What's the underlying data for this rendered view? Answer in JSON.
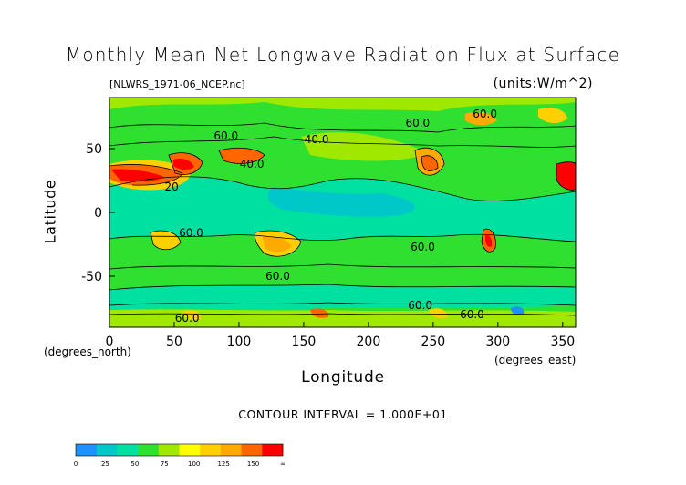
{
  "chart_data": {
    "type": "heatmap",
    "title": "Monthly Mean Net Longwave Radiation Flux at Surface",
    "source_label": "[NLWRS_1971-06_NCEP.nc]",
    "units_label": "(units:W/m^2)",
    "xlabel": "Longitude",
    "ylabel": "Latitude",
    "x_unit_label": "(degrees_east)",
    "y_unit_label": "(degrees_north)",
    "contour_interval_text": "CONTOUR INTERVAL = 1.000E+01",
    "xlim": [
      0,
      360
    ],
    "ylim": [
      -90,
      90
    ],
    "x_ticks": [
      0,
      50,
      100,
      150,
      200,
      250,
      300,
      350
    ],
    "y_ticks": [
      50,
      0,
      -50
    ],
    "contour_labels": [
      {
        "text": "60.0",
        "x": 90,
        "y": 60
      },
      {
        "text": "40.0",
        "x": 160,
        "y": 57
      },
      {
        "text": "60.0",
        "x": 238,
        "y": 70
      },
      {
        "text": "60.0",
        "x": 290,
        "y": 77
      },
      {
        "text": "40.0",
        "x": 110,
        "y": 38
      },
      {
        "text": "20",
        "x": 48,
        "y": 20
      },
      {
        "text": "60.0",
        "x": 63,
        "y": -16
      },
      {
        "text": "60.0",
        "x": 242,
        "y": -27
      },
      {
        "text": "60.0",
        "x": 130,
        "y": -50
      },
      {
        "text": "60.0",
        "x": 240,
        "y": -73
      },
      {
        "text": "60.0",
        "x": 60,
        "y": -83
      },
      {
        "text": "60.0",
        "x": 280,
        "y": -80
      }
    ],
    "colorbar": {
      "tick_labels": [
        "0",
        "25",
        "50",
        "75",
        "100",
        "125",
        "150",
        "∞"
      ],
      "colors": [
        "#1e90ff",
        "#00c8c8",
        "#00e0a0",
        "#30e030",
        "#a0e800",
        "#ffff00",
        "#ffd000",
        "#ffaa00",
        "#ff6600",
        "#ff0000"
      ]
    }
  }
}
